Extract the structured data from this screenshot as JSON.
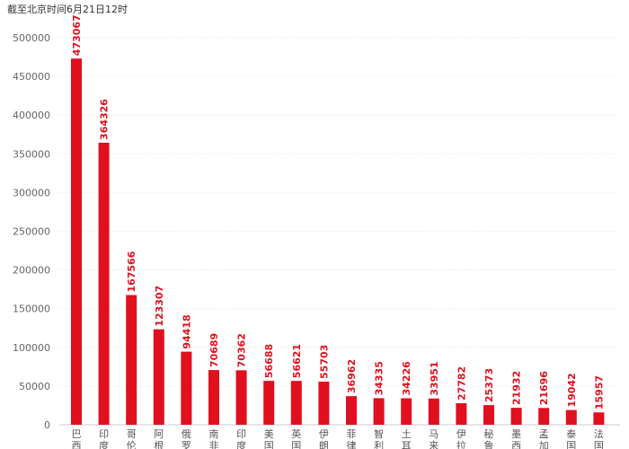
{
  "subtitle": "截至北京时间6月21日12时",
  "colors": {
    "bar": "#e0101e",
    "label": "#e0101e"
  },
  "chart_data": {
    "type": "bar",
    "title": "",
    "subtitle": "截至北京时间6月21日12时",
    "xlabel": "",
    "ylabel": "",
    "ylim": [
      0,
      500000
    ],
    "yticks": [
      0,
      50000,
      100000,
      150000,
      200000,
      250000,
      300000,
      350000,
      400000,
      450000,
      500000
    ],
    "grid": true,
    "categories": [
      "巴西",
      "印度",
      "哥伦",
      "阿根",
      "俄罗",
      "南非",
      "印度",
      "美国",
      "英国",
      "伊朗",
      "菲律",
      "智利",
      "土耳",
      "马来",
      "伊拉",
      "秘鲁",
      "墨西",
      "孟加",
      "泰国",
      "法国"
    ],
    "values": [
      473067,
      364326,
      167566,
      123307,
      94418,
      70689,
      70362,
      56688,
      56621,
      55703,
      36962,
      34335,
      34226,
      33951,
      27782,
      25373,
      21932,
      21696,
      19042,
      15957
    ]
  }
}
